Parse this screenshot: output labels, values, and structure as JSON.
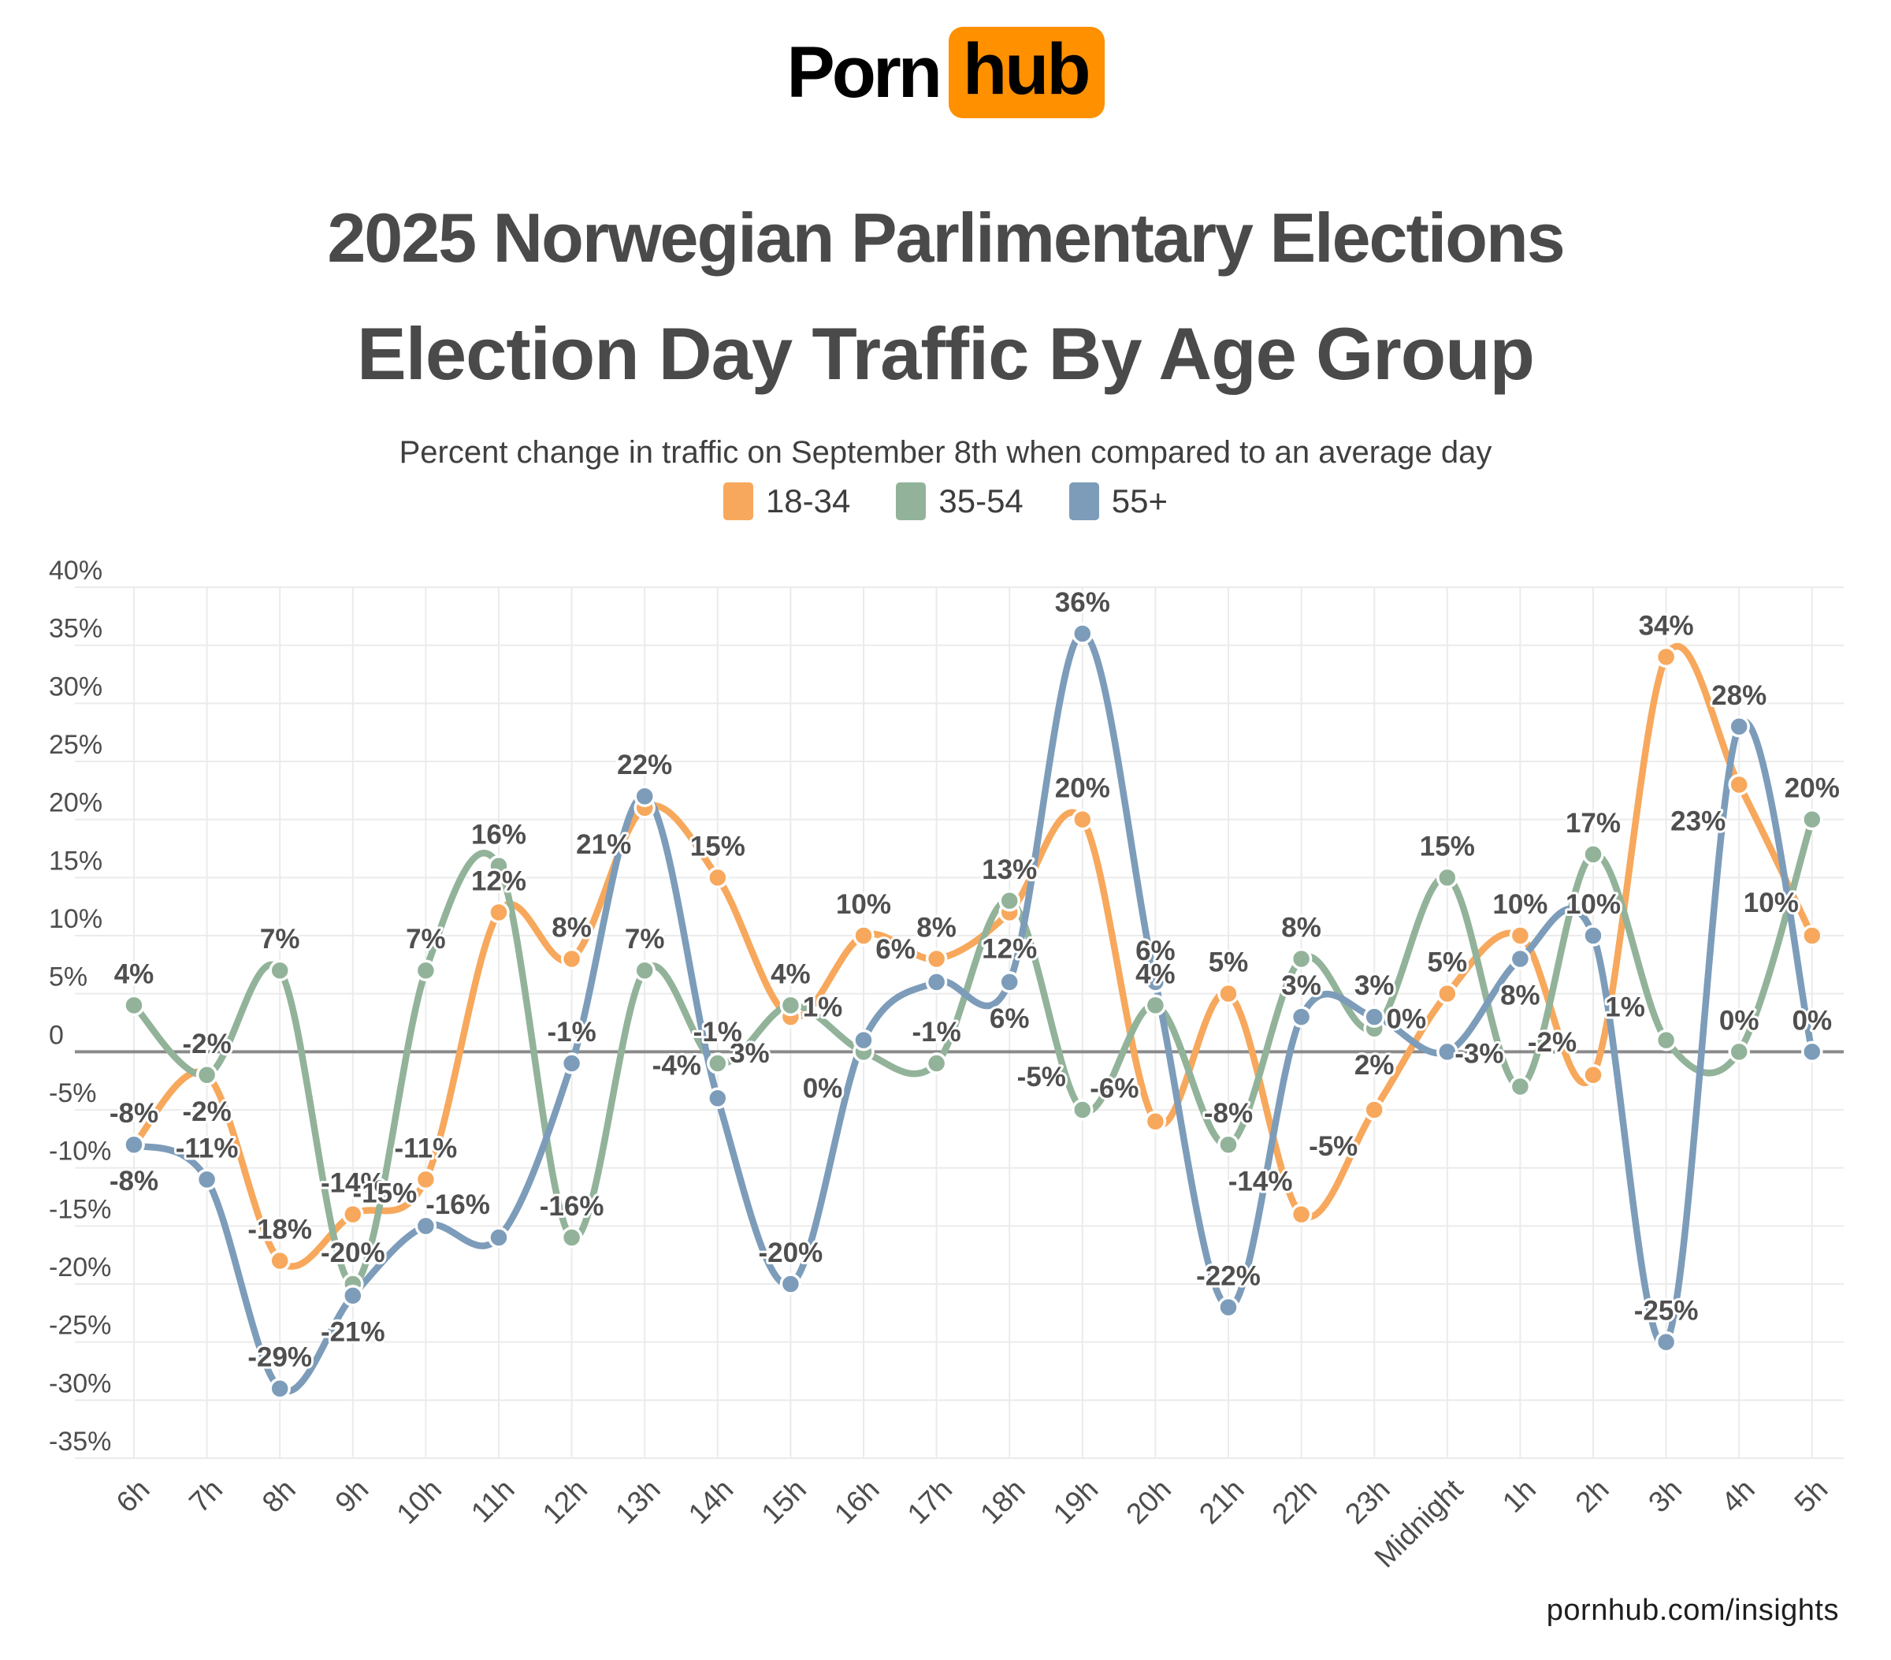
{
  "logo": {
    "porn": "Porn",
    "hub": "hub",
    "box_color": "#FF9000"
  },
  "header": {
    "title": "2025 Norwegian Parlimentary Elections",
    "subtitle": "Election Day Traffic By Age Group",
    "description": "Percent change in traffic on September 8th when compared to an average day"
  },
  "legend": [
    {
      "label": "18-34",
      "color": "#F7A85C"
    },
    {
      "label": "35-54",
      "color": "#92B399"
    },
    {
      "label": "55+",
      "color": "#7C9CBA"
    }
  ],
  "footer": {
    "url": "pornhub.com/insights"
  },
  "colors": {
    "title_gray": "#4A4A4A",
    "data_label": "#4F4F4F",
    "axis_text": "#4D4D4D",
    "grid": "#EBEBEB",
    "zero_line": "#8A8A8A"
  },
  "chart_data": {
    "type": "line",
    "title": "Election Day Traffic By Age Group",
    "xlabel": "",
    "ylabel": "",
    "ylim": [
      -35,
      40
    ],
    "ytick_step": 5,
    "grid": true,
    "legend_position": "top",
    "zero_line": true,
    "ytick_labels": [
      "40%",
      "35%",
      "30%",
      "25%",
      "20%",
      "15%",
      "10%",
      "5%",
      "0",
      "-5%",
      "-10%",
      "-15%",
      "-20%",
      "-25%",
      "-30%",
      "-35%"
    ],
    "categories": [
      "6h",
      "7h",
      "8h",
      "9h",
      "10h",
      "11h",
      "12h",
      "13h",
      "14h",
      "15h",
      "16h",
      "17h",
      "18h",
      "19h",
      "20h",
      "21h",
      "22h",
      "23h",
      "Midnight",
      "1h",
      "2h",
      "3h",
      "4h",
      "5h"
    ],
    "series": [
      {
        "name": "18-34",
        "color": "#F7A85C",
        "values": [
          -8,
          -2,
          -18,
          -14,
          -11,
          12,
          8,
          21,
          15,
          3,
          10,
          8,
          12,
          20,
          -6,
          5,
          -14,
          -5,
          5,
          10,
          -2,
          34,
          23,
          10
        ],
        "label_pos": [
          "a",
          "b",
          "a",
          "a",
          "a",
          "a",
          "a",
          "bl",
          "a",
          "bl",
          "a",
          "a",
          "b",
          "a",
          "al",
          "a",
          "al",
          "bl",
          "a",
          "a",
          "al",
          "a",
          "bl",
          "al"
        ]
      },
      {
        "name": "35-54",
        "color": "#92B399",
        "values": [
          4,
          -2,
          7,
          -20,
          7,
          16,
          -16,
          7,
          -1,
          4,
          0,
          -1,
          13,
          -5,
          4,
          -8,
          8,
          2,
          15,
          -3,
          17,
          1,
          0,
          20
        ],
        "label_pos": [
          "a",
          "a",
          "a",
          "a",
          "a",
          "a",
          "a",
          "a",
          "a",
          "a",
          "bl",
          "a",
          "a",
          "al",
          "a",
          "a",
          "a",
          "b",
          "a",
          "al",
          "a",
          "al",
          "a",
          "a"
        ]
      },
      {
        "name": "55+",
        "color": "#7C9CBA",
        "values": [
          -8,
          -11,
          -29,
          -21,
          -15,
          -16,
          -1,
          22,
          -4,
          -20,
          1,
          6,
          6,
          36,
          6,
          -22,
          3,
          3,
          0,
          8,
          10,
          -25,
          28,
          0
        ],
        "label_pos": [
          "b",
          "a",
          "a",
          "b",
          "al",
          "al",
          "a",
          "a",
          "al",
          "a",
          "al",
          "al",
          "b",
          "a",
          "a",
          "a",
          "a",
          "a",
          "al",
          "b",
          "a",
          "a",
          "a",
          "a"
        ]
      }
    ]
  }
}
